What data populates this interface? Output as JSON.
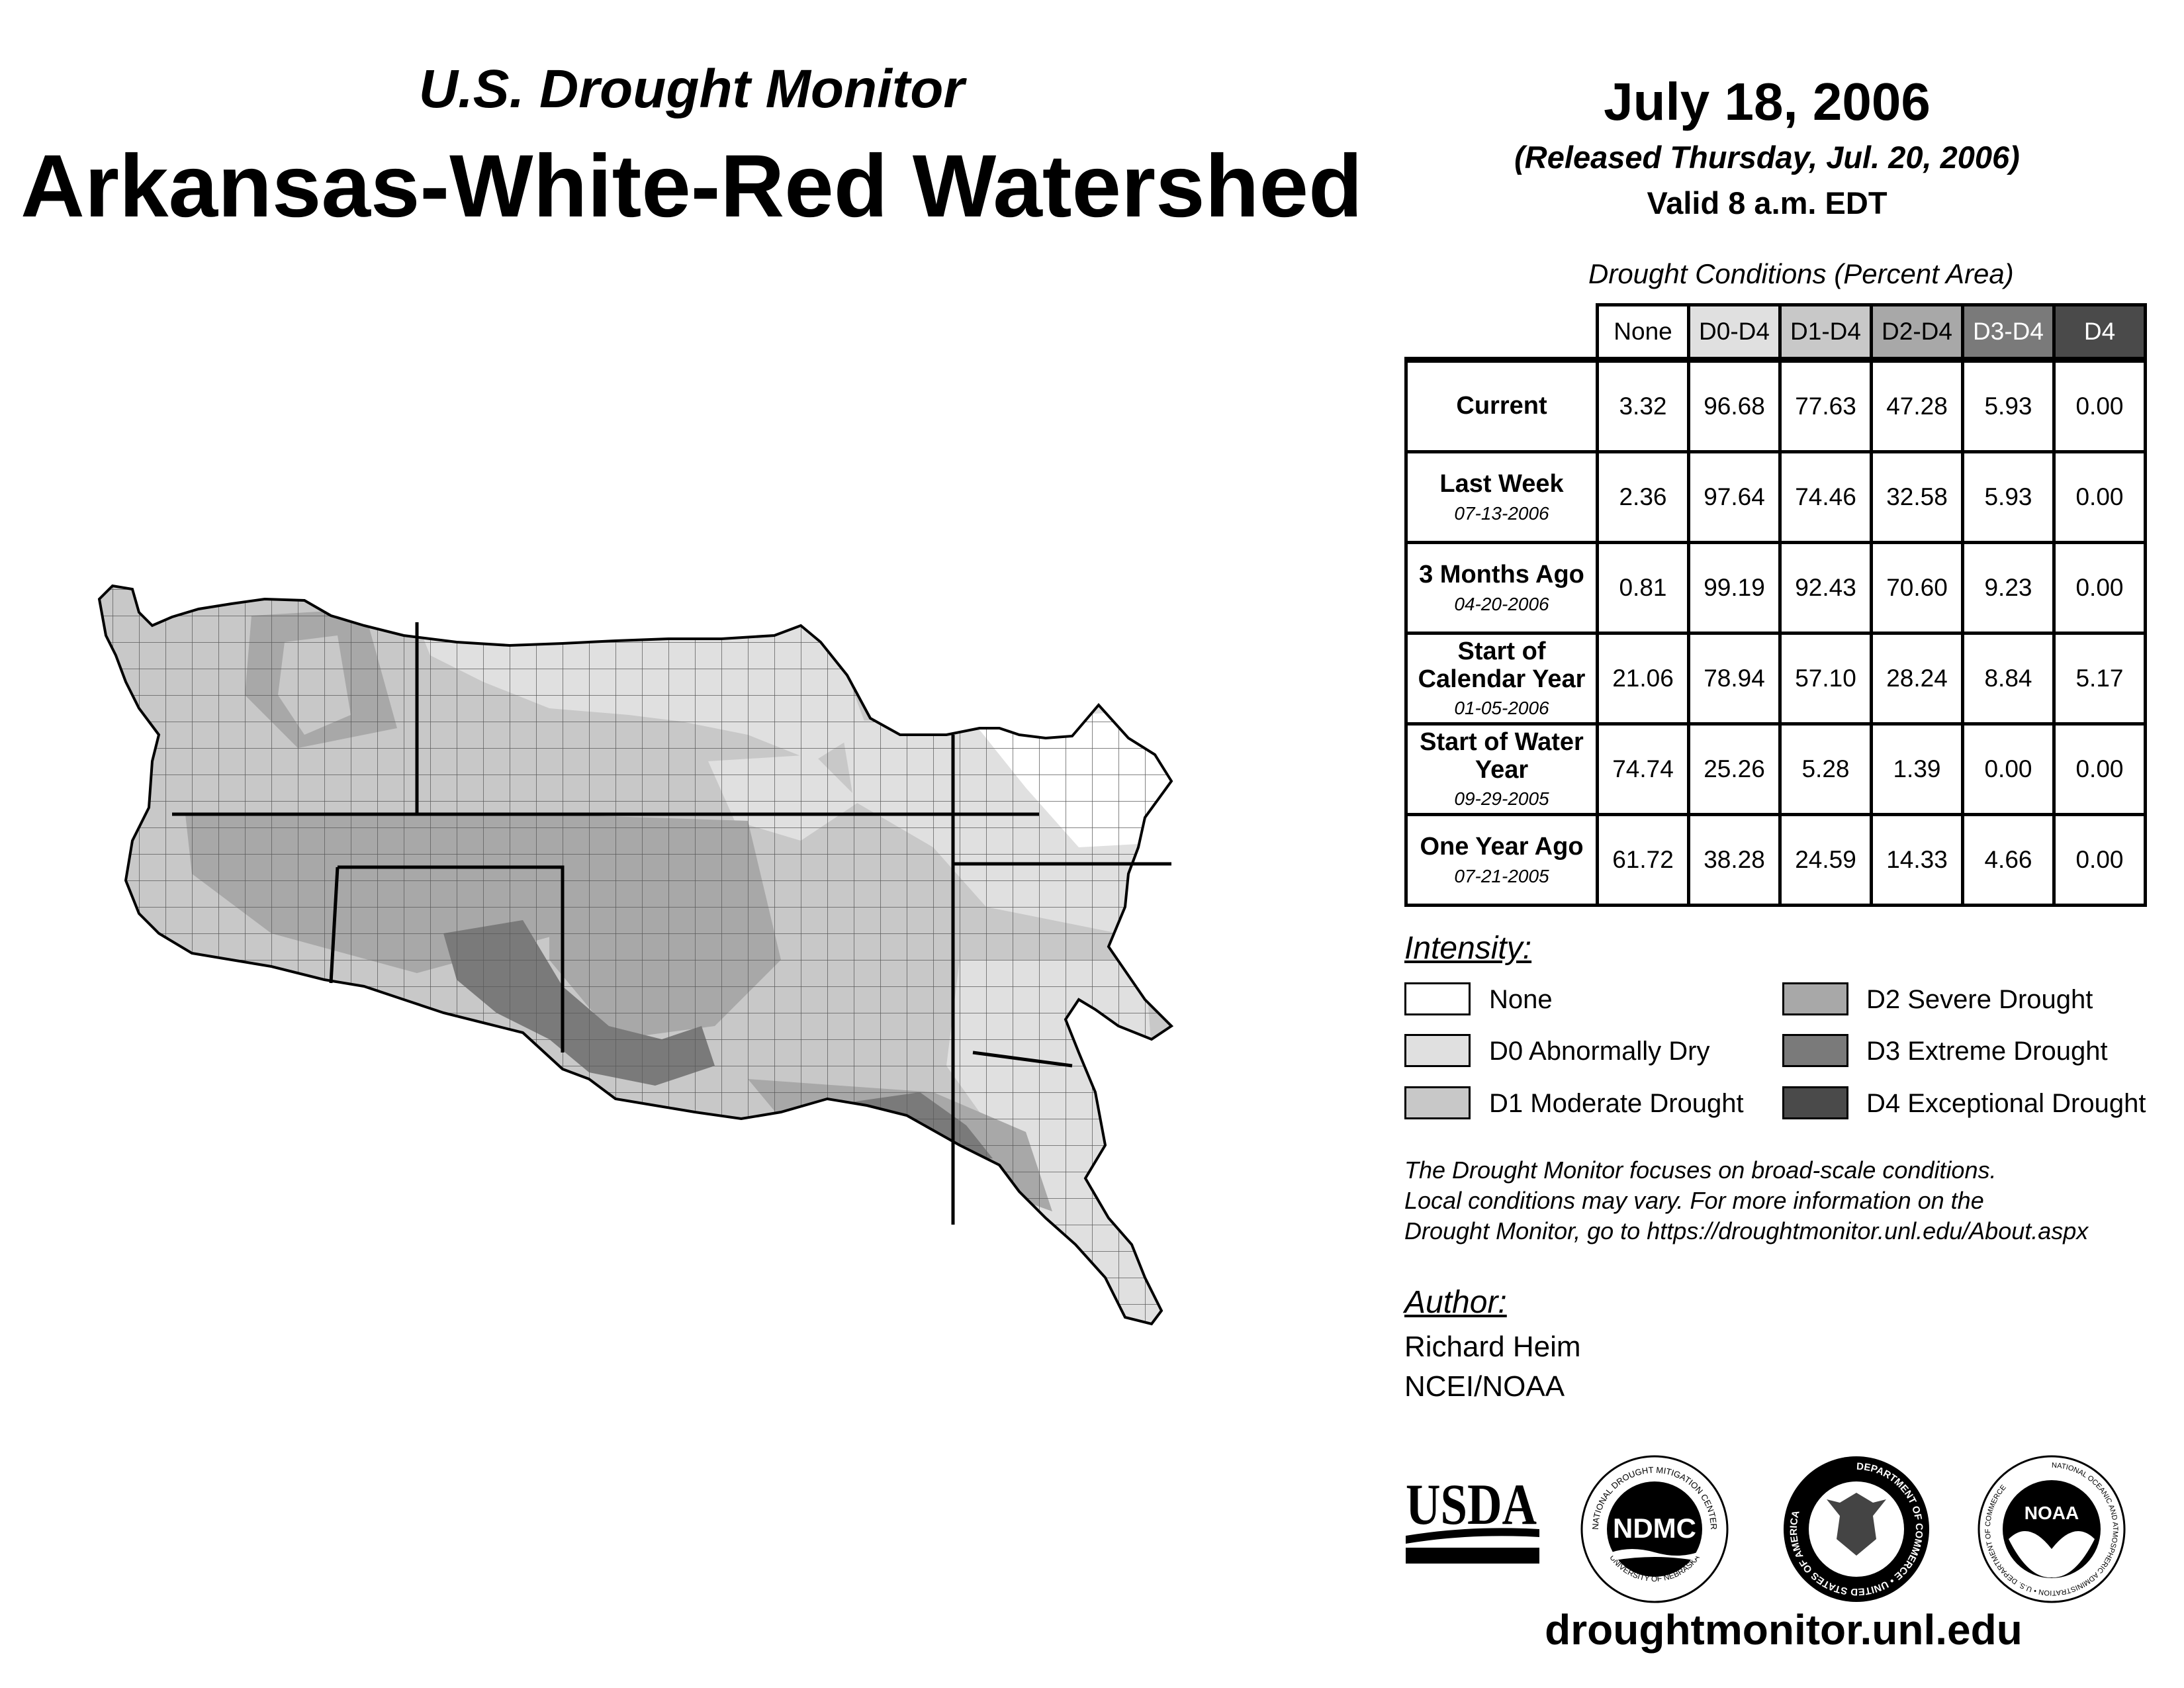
{
  "header": {
    "subtitle": "U.S. Drought Monitor",
    "title": "Arkansas-White-Red Watershed"
  },
  "date": {
    "main": "July 18, 2006",
    "released": "(Released Thursday, Jul. 20, 2006)",
    "valid": "Valid 8 a.m. EDT"
  },
  "table": {
    "caption": "Drought Conditions (Percent Area)",
    "columns": [
      {
        "label": "None",
        "bg": "#ffffff",
        "fg": "#000000"
      },
      {
        "label": "D0-D4",
        "bg": "#e0e0e0",
        "fg": "#000000"
      },
      {
        "label": "D1-D4",
        "bg": "#c8c8c8",
        "fg": "#000000"
      },
      {
        "label": "D2-D4",
        "bg": "#a8a8a8",
        "fg": "#000000"
      },
      {
        "label": "D3-D4",
        "bg": "#7a7a7a",
        "fg": "#ffffff"
      },
      {
        "label": "D4",
        "bg": "#4a4a4a",
        "fg": "#ffffff"
      }
    ],
    "rows": [
      {
        "label": "Current",
        "date": "",
        "values": [
          "3.32",
          "96.68",
          "77.63",
          "47.28",
          "5.93",
          "0.00"
        ]
      },
      {
        "label": "Last Week",
        "date": "07-13-2006",
        "values": [
          "2.36",
          "97.64",
          "74.46",
          "32.58",
          "5.93",
          "0.00"
        ]
      },
      {
        "label": "3 Months Ago",
        "date": "04-20-2006",
        "values": [
          "0.81",
          "99.19",
          "92.43",
          "70.60",
          "9.23",
          "0.00"
        ]
      },
      {
        "label": "Start of Calendar Year",
        "date": "01-05-2006",
        "values": [
          "21.06",
          "78.94",
          "57.10",
          "28.24",
          "8.84",
          "5.17"
        ]
      },
      {
        "label": "Start of Water Year",
        "date": "09-29-2005",
        "values": [
          "74.74",
          "25.26",
          "5.28",
          "1.39",
          "0.00",
          "0.00"
        ]
      },
      {
        "label": "One Year Ago",
        "date": "07-21-2005",
        "values": [
          "61.72",
          "38.28",
          "24.59",
          "14.33",
          "4.66",
          "0.00"
        ]
      }
    ]
  },
  "legend": {
    "heading": "Intensity:",
    "items": [
      {
        "label": "None",
        "color": "#ffffff"
      },
      {
        "label": "D0 Abnormally Dry",
        "color": "#e0e0e0"
      },
      {
        "label": "D1 Moderate Drought",
        "color": "#c8c8c8"
      },
      {
        "label": "D2 Severe Drought",
        "color": "#a8a8a8"
      },
      {
        "label": "D3 Extreme Drought",
        "color": "#7a7a7a"
      },
      {
        "label": "D4 Exceptional Drought",
        "color": "#4a4a4a"
      }
    ]
  },
  "disclaimer": {
    "line1": "The Drought Monitor focuses on broad-scale conditions.",
    "line2": "Local conditions may vary. For more information on the",
    "line3": "Drought Monitor, go to https://droughtmonitor.unl.edu/About.aspx"
  },
  "author": {
    "heading": "Author:",
    "name": "Richard Heim",
    "org": "NCEI/NOAA"
  },
  "logos": {
    "usda": "USDA",
    "ndmc": "NDMC",
    "ndmc_ring": "NATIONAL DROUGHT MITIGATION CENTER",
    "ndmc_ring_bottom": "UNIVERSITY OF NEBRASKA",
    "commerce_ring": "DEPARTMENT OF COMMERCE • UNITED STATES OF AMERICA",
    "noaa": "NOAA",
    "noaa_ring": "NATIONAL OCEANIC AND ATMOSPHERIC ADMINISTRATION • U.S. DEPARTMENT OF COMMERCE"
  },
  "website": "droughtmonitor.unl.edu"
}
